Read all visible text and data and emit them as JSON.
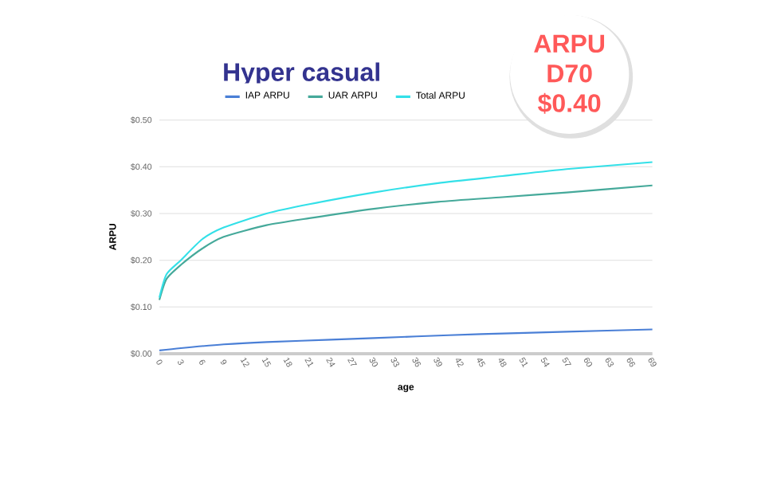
{
  "chart_data": {
    "type": "line",
    "title": "Hyper casual",
    "xlabel": "age",
    "ylabel": "ARPU",
    "annotations": [
      "ARPU D70 $0.40"
    ],
    "xlim": [
      0,
      69
    ],
    "xticks": [
      0,
      3,
      6,
      9,
      12,
      15,
      18,
      21,
      24,
      27,
      30,
      33,
      36,
      39,
      42,
      45,
      48,
      51,
      54,
      57,
      60,
      63,
      66,
      69
    ],
    "ylim": [
      0,
      0.5
    ],
    "yticks": [
      {
        "value": 0,
        "label": "$0.00"
      },
      {
        "value": 0.1,
        "label": "$0.10"
      },
      {
        "value": 0.2,
        "label": "$0.20"
      },
      {
        "value": 0.3,
        "label": "$0.30"
      },
      {
        "value": 0.4,
        "label": "$0.40"
      },
      {
        "value": 0.5,
        "label": "$0.50"
      }
    ],
    "grid": "y",
    "legend": "top",
    "marker": "none",
    "line_style": "solid",
    "series": [
      {
        "name": "IAP ARPU",
        "color": "#4a7fd6",
        "x": [
          0,
          3,
          9,
          15,
          24,
          36,
          45,
          57,
          69
        ],
        "values": [
          0.007,
          0.012,
          0.02,
          0.025,
          0.03,
          0.037,
          0.042,
          0.047,
          0.052
        ]
      },
      {
        "name": "UAR ARPU",
        "color": "#45a99a",
        "x": [
          0,
          1,
          3,
          6,
          9,
          15,
          21,
          30,
          39,
          48,
          57,
          69
        ],
        "values": [
          0.115,
          0.16,
          0.19,
          0.225,
          0.25,
          0.275,
          0.29,
          0.31,
          0.325,
          0.335,
          0.345,
          0.36
        ]
      },
      {
        "name": "Total ARPU",
        "color": "#33e0e8",
        "x": [
          0,
          1,
          3,
          6,
          9,
          15,
          21,
          30,
          39,
          48,
          57,
          69
        ],
        "values": [
          0.12,
          0.17,
          0.2,
          0.245,
          0.27,
          0.3,
          0.32,
          0.345,
          0.365,
          0.38,
          0.395,
          0.41
        ]
      }
    ]
  }
}
